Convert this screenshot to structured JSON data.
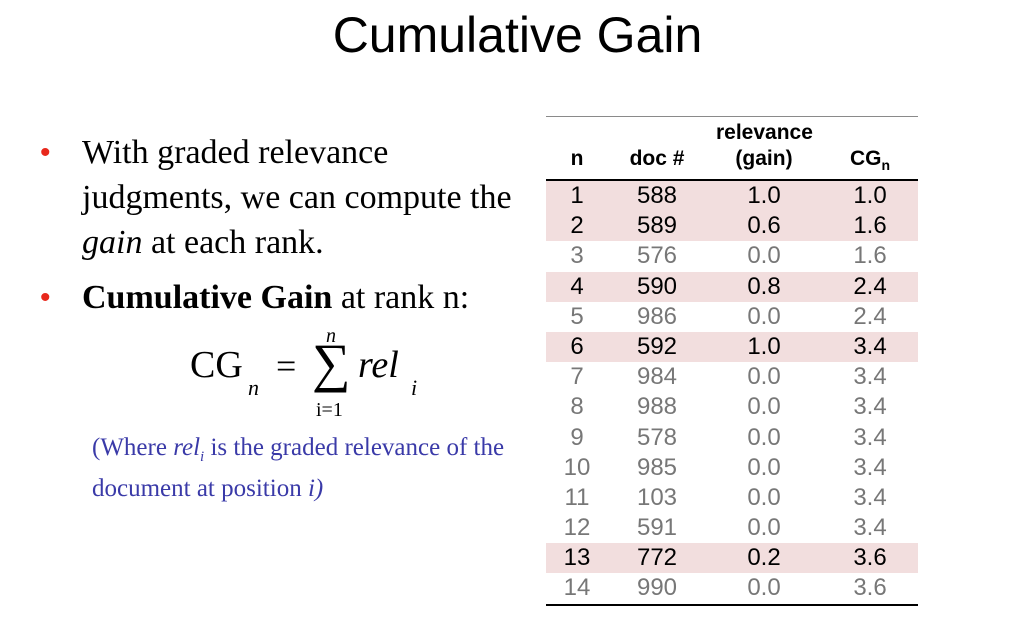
{
  "title": "Cumulative Gain",
  "bullets": {
    "b1_pre": "With graded relevance judgments, we can compute the ",
    "b1_em": "gain",
    "b1_post": " at each rank.",
    "b2_bold": "Cumulative Gain",
    "b2_post": " at rank n:"
  },
  "formula": {
    "lhs": "CG",
    "lhs_sub": "n",
    "equals": "=",
    "sigma": "∑",
    "upper": "n",
    "lower": "i=1",
    "term": "rel",
    "term_sub": "i"
  },
  "note": {
    "pre": "(Where ",
    "rel": "rel",
    "rel_sub": "i",
    "mid": " is the graded relevance of the document at position ",
    "i": "i)"
  },
  "table": {
    "headers": {
      "n": "n",
      "doc": "doc #",
      "rel_top": "relevance",
      "rel_bottom": "(gain)",
      "cg": "CG",
      "cg_sub": "n"
    },
    "rows": [
      {
        "n": "1",
        "doc": "588",
        "rel": "1.0",
        "cg": "1.0",
        "highlight": true
      },
      {
        "n": "2",
        "doc": "589",
        "rel": "0.6",
        "cg": "1.6",
        "highlight": true
      },
      {
        "n": "3",
        "doc": "576",
        "rel": "0.0",
        "cg": "1.6",
        "highlight": false
      },
      {
        "n": "4",
        "doc": "590",
        "rel": "0.8",
        "cg": "2.4",
        "highlight": true
      },
      {
        "n": "5",
        "doc": "986",
        "rel": "0.0",
        "cg": "2.4",
        "highlight": false
      },
      {
        "n": "6",
        "doc": "592",
        "rel": "1.0",
        "cg": "3.4",
        "highlight": true
      },
      {
        "n": "7",
        "doc": "984",
        "rel": "0.0",
        "cg": "3.4",
        "highlight": false
      },
      {
        "n": "8",
        "doc": "988",
        "rel": "0.0",
        "cg": "3.4",
        "highlight": false
      },
      {
        "n": "9",
        "doc": "578",
        "rel": "0.0",
        "cg": "3.4",
        "highlight": false
      },
      {
        "n": "10",
        "doc": "985",
        "rel": "0.0",
        "cg": "3.4",
        "highlight": false
      },
      {
        "n": "11",
        "doc": "103",
        "rel": "0.0",
        "cg": "3.4",
        "highlight": false
      },
      {
        "n": "12",
        "doc": "591",
        "rel": "0.0",
        "cg": "3.4",
        "highlight": false
      },
      {
        "n": "13",
        "doc": "772",
        "rel": "0.2",
        "cg": "3.6",
        "highlight": true
      },
      {
        "n": "14",
        "doc": "990",
        "rel": "0.0",
        "cg": "3.6",
        "highlight": false
      }
    ]
  },
  "colors": {
    "bullet": "#e8281c",
    "note": "#3a3aa8",
    "highlight_row": "#f2dede",
    "dim_text": "#777777"
  }
}
